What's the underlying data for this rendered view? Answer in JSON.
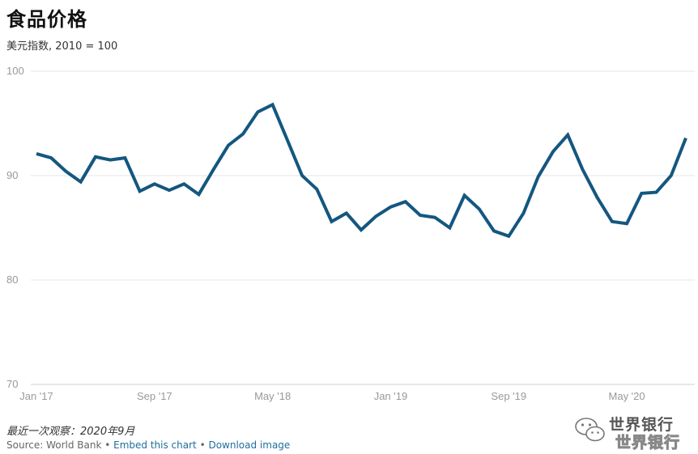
{
  "header": {
    "title": "食品价格",
    "subtitle": "美元指数, 2010 = 100"
  },
  "chart_data": {
    "type": "line",
    "title": "食品价格",
    "subtitle": "美元指数, 2010 = 100",
    "xlabel": "",
    "ylabel": "",
    "ylim": [
      70,
      100
    ],
    "yticks": [
      70,
      80,
      90,
      100
    ],
    "grid": true,
    "line_color": "#14577f",
    "x": [
      "2017-01",
      "2017-02",
      "2017-03",
      "2017-04",
      "2017-05",
      "2017-06",
      "2017-07",
      "2017-08",
      "2017-09",
      "2017-10",
      "2017-11",
      "2017-12",
      "2018-01",
      "2018-02",
      "2018-03",
      "2018-04",
      "2018-05",
      "2018-06",
      "2018-07",
      "2018-08",
      "2018-09",
      "2018-10",
      "2018-11",
      "2018-12",
      "2019-01",
      "2019-02",
      "2019-03",
      "2019-04",
      "2019-05",
      "2019-06",
      "2019-07",
      "2019-08",
      "2019-09",
      "2019-10",
      "2019-11",
      "2019-12",
      "2020-01",
      "2020-02",
      "2020-03",
      "2020-04",
      "2020-05",
      "2020-06",
      "2020-07",
      "2020-08",
      "2020-09"
    ],
    "series": [
      {
        "values": [
          92.1,
          91.7,
          90.4,
          89.4,
          91.8,
          91.5,
          91.7,
          88.5,
          89.2,
          88.6,
          89.2,
          88.2,
          90.6,
          92.9,
          94.0,
          96.1,
          96.8,
          93.4,
          90.0,
          88.7,
          85.6,
          86.4,
          84.8,
          86.1,
          87.0,
          87.5,
          86.2,
          86.0,
          85.0,
          88.1,
          86.8,
          84.7,
          84.2,
          86.4,
          89.9,
          92.3,
          93.9,
          90.6,
          87.9,
          85.6,
          85.4,
          88.3,
          88.4,
          90.0,
          93.6
        ]
      }
    ],
    "x_tick_labels": [
      {
        "label": "Jan '17",
        "x": "2017-01"
      },
      {
        "label": "Sep '17",
        "x": "2017-09"
      },
      {
        "label": "May '18",
        "x": "2018-05"
      },
      {
        "label": "Jan '19",
        "x": "2019-01"
      },
      {
        "label": "Sep '19",
        "x": "2019-09"
      },
      {
        "label": "May '20",
        "x": "2020-05"
      }
    ]
  },
  "footer": {
    "note": "最近一次观察：2020年9月",
    "source": "Source: World Bank",
    "separator": " • ",
    "embed_link": "Embed this chart",
    "download_link": "Download image"
  },
  "watermark": {
    "text": "世界银行",
    "icon": "wechat-icon"
  }
}
